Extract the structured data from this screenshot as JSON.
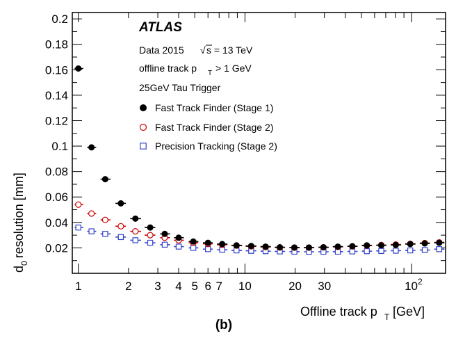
{
  "chart_data": {
    "type": "scatter",
    "experiment": "ATLAS",
    "annotations": [
      "Data 2015",
      "offline track p",
      "> 1 GeV",
      "25GeV Tau Trigger"
    ],
    "sqrt_s_label": "s = 13 TeV",
    "pt_sub": "T",
    "xlabel": "Offline track p",
    "xlabel_sub": "T",
    "xlabel_unit": "[GeV]",
    "ylabel": "d",
    "ylabel_sub": "0",
    "ylabel_rest": "resolution [mm]",
    "panel_label": "(b)",
    "x_scale": "log",
    "xlim": [
      0.92,
      160
    ],
    "ylim": [
      0,
      0.205
    ],
    "yticks": [
      "0.02",
      "0.04",
      "0.06",
      "0.08",
      "0.1",
      "0.12",
      "0.14",
      "0.16",
      "0.18",
      "0.2"
    ],
    "xtick_labels": [
      {
        "value": 1,
        "label": "1"
      },
      {
        "value": 2,
        "label": "2"
      },
      {
        "value": 3,
        "label": "3"
      },
      {
        "value": 4,
        "label": "4"
      },
      {
        "value": 5,
        "label": "5"
      },
      {
        "value": 6,
        "label": "6"
      },
      {
        "value": 7,
        "label": "7"
      },
      {
        "value": 10,
        "label": "10"
      },
      {
        "value": 20,
        "label": "20"
      },
      {
        "value": 30,
        "label": "30"
      }
    ],
    "xtick_100": {
      "value": 100,
      "base": "10",
      "exp": "2"
    },
    "legend_position": "top-right",
    "series": [
      {
        "name": "Fast Track Finder (Stage 1)",
        "marker": "filled-circle",
        "color": "#000000",
        "points": [
          {
            "x": 1.0,
            "y": 0.161,
            "xlo": 0.95,
            "xhi": 1.07
          },
          {
            "x": 1.2,
            "y": 0.099,
            "xlo": 1.13,
            "xhi": 1.28
          },
          {
            "x": 1.45,
            "y": 0.074,
            "xlo": 1.36,
            "xhi": 1.56
          },
          {
            "x": 1.8,
            "y": 0.055,
            "xlo": 1.67,
            "xhi": 1.93
          },
          {
            "x": 2.2,
            "y": 0.043,
            "xlo": 2.05,
            "xhi": 2.38
          },
          {
            "x": 2.7,
            "y": 0.036,
            "xlo": 2.5,
            "xhi": 2.9
          },
          {
            "x": 3.3,
            "y": 0.031,
            "xlo": 3.1,
            "xhi": 3.55
          },
          {
            "x": 4.0,
            "y": 0.028,
            "xlo": 3.75,
            "xhi": 4.3
          },
          {
            "x": 4.9,
            "y": 0.025,
            "xlo": 4.6,
            "xhi": 5.25
          },
          {
            "x": 6.0,
            "y": 0.024,
            "xlo": 5.6,
            "xhi": 6.4
          },
          {
            "x": 7.3,
            "y": 0.023,
            "xlo": 6.8,
            "xhi": 7.85
          },
          {
            "x": 8.9,
            "y": 0.022,
            "xlo": 8.3,
            "xhi": 9.6
          },
          {
            "x": 10.9,
            "y": 0.0215,
            "xlo": 10.1,
            "xhi": 11.7
          },
          {
            "x": 13.3,
            "y": 0.021,
            "xlo": 12.4,
            "xhi": 14.3
          },
          {
            "x": 16.2,
            "y": 0.0205,
            "xlo": 15.1,
            "xhi": 17.4
          },
          {
            "x": 19.8,
            "y": 0.0203,
            "xlo": 18.5,
            "xhi": 21.3
          },
          {
            "x": 24.2,
            "y": 0.0203,
            "xlo": 22.6,
            "xhi": 26.0
          },
          {
            "x": 29.6,
            "y": 0.0205,
            "xlo": 27.6,
            "xhi": 31.8
          },
          {
            "x": 36.1,
            "y": 0.021,
            "xlo": 33.7,
            "xhi": 38.8
          },
          {
            "x": 44.1,
            "y": 0.0213,
            "xlo": 41.2,
            "xhi": 47.4
          },
          {
            "x": 53.9,
            "y": 0.022,
            "xlo": 50.3,
            "xhi": 57.9
          },
          {
            "x": 65.8,
            "y": 0.022,
            "xlo": 61.4,
            "xhi": 70.7
          },
          {
            "x": 80.4,
            "y": 0.0223,
            "xlo": 75.0,
            "xhi": 86.4
          },
          {
            "x": 98.2,
            "y": 0.023,
            "xlo": 91.6,
            "xhi": 105.5
          },
          {
            "x": 120.0,
            "y": 0.0235,
            "xlo": 112.0,
            "xhi": 128.9
          },
          {
            "x": 146.5,
            "y": 0.024,
            "xlo": 136.7,
            "xhi": 157.4
          }
        ]
      },
      {
        "name": "Fast Track Finder (Stage 2)",
        "marker": "open-circle",
        "color": "#cc0000",
        "points": [
          {
            "x": 1.0,
            "y": 0.054,
            "xlo": 0.95,
            "xhi": 1.07
          },
          {
            "x": 1.2,
            "y": 0.047,
            "xlo": 1.13,
            "xhi": 1.28
          },
          {
            "x": 1.45,
            "y": 0.042,
            "xlo": 1.36,
            "xhi": 1.56
          },
          {
            "x": 1.8,
            "y": 0.037,
            "xlo": 1.67,
            "xhi": 1.93
          },
          {
            "x": 2.2,
            "y": 0.033,
            "xlo": 2.05,
            "xhi": 2.38
          },
          {
            "x": 2.7,
            "y": 0.03,
            "xlo": 2.5,
            "xhi": 2.9
          },
          {
            "x": 3.3,
            "y": 0.028,
            "xlo": 3.1,
            "xhi": 3.55
          },
          {
            "x": 4.0,
            "y": 0.026,
            "xlo": 3.75,
            "xhi": 4.3
          },
          {
            "x": 4.9,
            "y": 0.024,
            "xlo": 4.6,
            "xhi": 5.25
          },
          {
            "x": 6.0,
            "y": 0.0232,
            "xlo": 5.6,
            "xhi": 6.4
          },
          {
            "x": 7.3,
            "y": 0.0225,
            "xlo": 6.8,
            "xhi": 7.85
          },
          {
            "x": 8.9,
            "y": 0.0218,
            "xlo": 8.3,
            "xhi": 9.6
          },
          {
            "x": 10.9,
            "y": 0.0212,
            "xlo": 10.1,
            "xhi": 11.7
          },
          {
            "x": 13.3,
            "y": 0.0207,
            "xlo": 12.4,
            "xhi": 14.3
          },
          {
            "x": 16.2,
            "y": 0.0203,
            "xlo": 15.1,
            "xhi": 17.4
          },
          {
            "x": 19.8,
            "y": 0.0202,
            "xlo": 18.5,
            "xhi": 21.3
          },
          {
            "x": 24.2,
            "y": 0.0202,
            "xlo": 22.6,
            "xhi": 26.0
          },
          {
            "x": 29.6,
            "y": 0.0204,
            "xlo": 27.6,
            "xhi": 31.8
          },
          {
            "x": 36.1,
            "y": 0.0208,
            "xlo": 33.7,
            "xhi": 38.8
          },
          {
            "x": 44.1,
            "y": 0.0212,
            "xlo": 41.2,
            "xhi": 47.4
          },
          {
            "x": 53.9,
            "y": 0.0218,
            "xlo": 50.3,
            "xhi": 57.9
          },
          {
            "x": 65.8,
            "y": 0.0222,
            "xlo": 61.4,
            "xhi": 70.7
          },
          {
            "x": 80.4,
            "y": 0.0226,
            "xlo": 75.0,
            "xhi": 86.4
          },
          {
            "x": 98.2,
            "y": 0.0232,
            "xlo": 91.6,
            "xhi": 105.5
          },
          {
            "x": 120.0,
            "y": 0.0238,
            "xlo": 112.0,
            "xhi": 128.9
          },
          {
            "x": 146.5,
            "y": 0.0243,
            "xlo": 136.7,
            "xhi": 157.4
          }
        ]
      },
      {
        "name": "Precision Tracking (Stage 2)",
        "marker": "open-square",
        "color": "#3344cc",
        "points": [
          {
            "x": 1.0,
            "y": 0.036,
            "xlo": 0.95,
            "xhi": 1.07
          },
          {
            "x": 1.2,
            "y": 0.033,
            "xlo": 1.13,
            "xhi": 1.28
          },
          {
            "x": 1.45,
            "y": 0.031,
            "xlo": 1.36,
            "xhi": 1.56
          },
          {
            "x": 1.8,
            "y": 0.0285,
            "xlo": 1.67,
            "xhi": 1.93
          },
          {
            "x": 2.2,
            "y": 0.026,
            "xlo": 2.05,
            "xhi": 2.38
          },
          {
            "x": 2.7,
            "y": 0.024,
            "xlo": 2.5,
            "xhi": 2.9
          },
          {
            "x": 3.3,
            "y": 0.0225,
            "xlo": 3.1,
            "xhi": 3.55
          },
          {
            "x": 4.0,
            "y": 0.021,
            "xlo": 3.75,
            "xhi": 4.3
          },
          {
            "x": 4.9,
            "y": 0.02,
            "xlo": 4.6,
            "xhi": 5.25
          },
          {
            "x": 6.0,
            "y": 0.019,
            "xlo": 5.6,
            "xhi": 6.4
          },
          {
            "x": 7.3,
            "y": 0.0185,
            "xlo": 6.8,
            "xhi": 7.85
          },
          {
            "x": 8.9,
            "y": 0.018,
            "xlo": 8.3,
            "xhi": 9.6
          },
          {
            "x": 10.9,
            "y": 0.0177,
            "xlo": 10.1,
            "xhi": 11.7
          },
          {
            "x": 13.3,
            "y": 0.0174,
            "xlo": 12.4,
            "xhi": 14.3
          },
          {
            "x": 16.2,
            "y": 0.0172,
            "xlo": 15.1,
            "xhi": 17.4
          },
          {
            "x": 19.8,
            "y": 0.017,
            "xlo": 18.5,
            "xhi": 21.3
          },
          {
            "x": 24.2,
            "y": 0.0169,
            "xlo": 22.6,
            "xhi": 26.0
          },
          {
            "x": 29.6,
            "y": 0.0169,
            "xlo": 27.6,
            "xhi": 31.8
          },
          {
            "x": 36.1,
            "y": 0.017,
            "xlo": 33.7,
            "xhi": 38.8
          },
          {
            "x": 44.1,
            "y": 0.0172,
            "xlo": 41.2,
            "xhi": 47.4
          },
          {
            "x": 53.9,
            "y": 0.0174,
            "xlo": 50.3,
            "xhi": 57.9
          },
          {
            "x": 65.8,
            "y": 0.0176,
            "xlo": 61.4,
            "xhi": 70.7
          },
          {
            "x": 80.4,
            "y": 0.0178,
            "xlo": 75.0,
            "xhi": 86.4
          },
          {
            "x": 98.2,
            "y": 0.018,
            "xlo": 91.6,
            "xhi": 105.5
          },
          {
            "x": 120.0,
            "y": 0.0183,
            "xlo": 112.0,
            "xhi": 128.9
          },
          {
            "x": 146.5,
            "y": 0.019,
            "xlo": 136.7,
            "xhi": 157.4
          }
        ]
      }
    ]
  }
}
